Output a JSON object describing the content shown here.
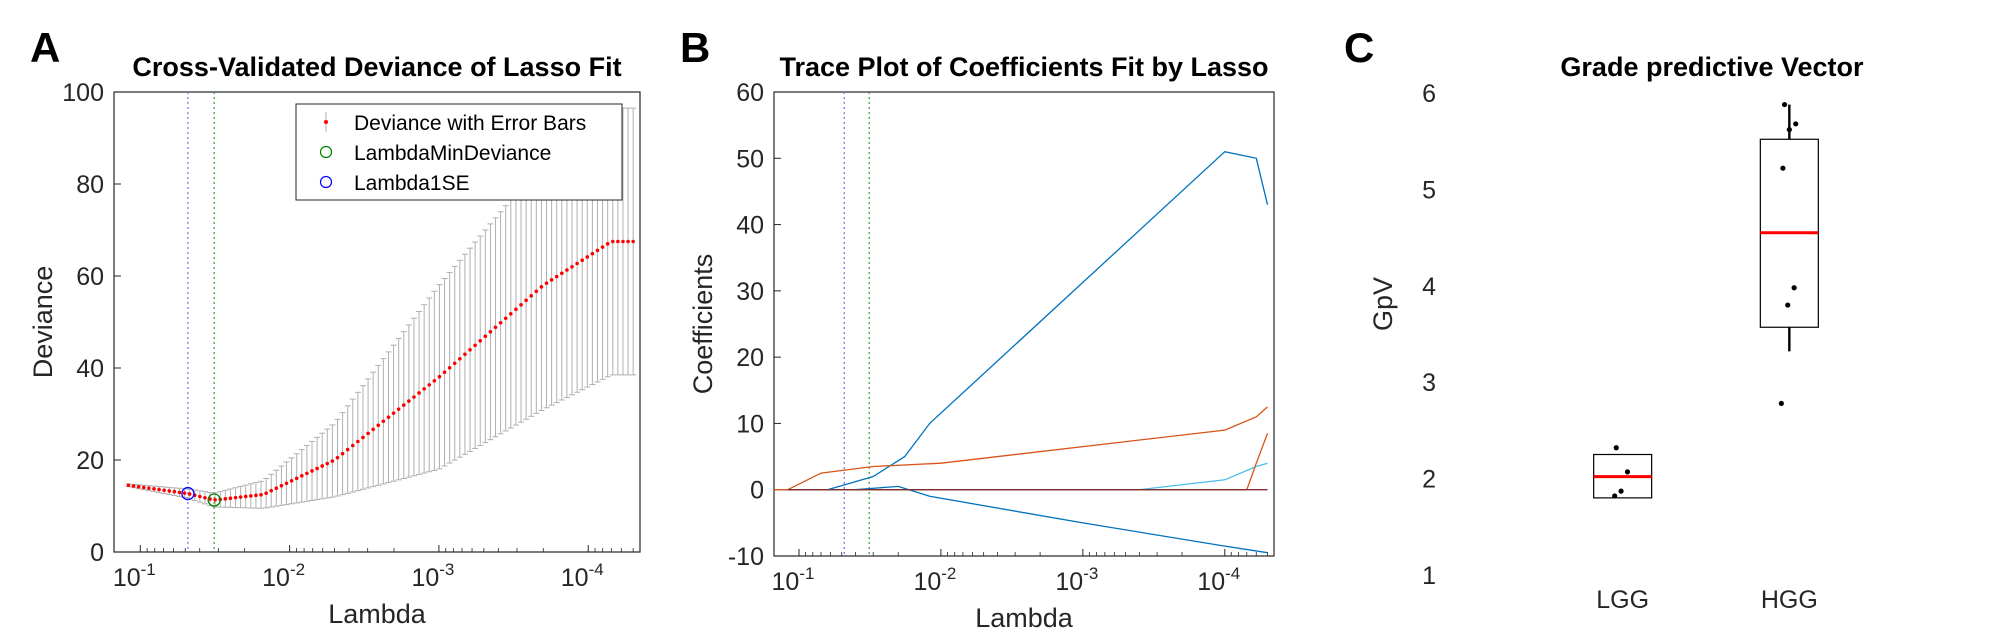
{
  "panels": {
    "A": {
      "letter": "A"
    },
    "B": {
      "letter": "B"
    },
    "C": {
      "letter": "C"
    }
  },
  "chart_data": [
    {
      "id": "A",
      "type": "scatter",
      "title": "Cross-Validated Deviance of Lasso Fit",
      "xlabel": "Lambda",
      "ylabel": "Deviance",
      "xscale": "log",
      "xaxis_reversed": true,
      "xlim": [
        0.15,
        4.5e-05
      ],
      "ylim": [
        0,
        100
      ],
      "yticks": [
        0,
        20,
        40,
        60,
        80,
        100
      ],
      "xticks": [
        {
          "base": "10",
          "exp": "-1",
          "value": 0.1
        },
        {
          "base": "10",
          "exp": "-2",
          "value": 0.01
        },
        {
          "base": "10",
          "exp": "-3",
          "value": 0.001
        },
        {
          "base": "10",
          "exp": "-4",
          "value": 0.0001
        }
      ],
      "grid": false,
      "legend_position": "top-right",
      "legend": [
        {
          "label": "Deviance with Error Bars",
          "marker": "errorbar-dot",
          "color": "#ff0000"
        },
        {
          "label": "LambdaMinDeviance",
          "marker": "circle",
          "color": "#008000"
        },
        {
          "label": "Lambda1SE",
          "marker": "circle",
          "color": "#0000ff"
        }
      ],
      "lambda_min_deviance": {
        "x": 0.032,
        "y": 11.3,
        "line_color": "#2ca02c"
      },
      "lambda_1se": {
        "x": 0.048,
        "y": 12.7,
        "line_color": "#7b68ee"
      },
      "deviance_curve": [
        {
          "x": 0.12,
          "y": 14.5
        },
        {
          "x": 0.048,
          "y": 12.7
        },
        {
          "x": 0.032,
          "y": 11.3
        },
        {
          "x": 0.015,
          "y": 12.5
        },
        {
          "x": 0.005,
          "y": 20.0
        },
        {
          "x": 0.001,
          "y": 38.0
        },
        {
          "x": 0.0002,
          "y": 58.0
        },
        {
          "x": 7e-05,
          "y": 67.5
        },
        {
          "x": 5e-05,
          "y": 67.5
        }
      ],
      "deviance_stderr": [
        {
          "x": 0.12,
          "se": 0.3
        },
        {
          "x": 0.048,
          "se": 1.0
        },
        {
          "x": 0.032,
          "se": 1.5
        },
        {
          "x": 0.015,
          "se": 3.0
        },
        {
          "x": 0.005,
          "se": 8.0
        },
        {
          "x": 0.001,
          "se": 20.0
        },
        {
          "x": 0.0002,
          "se": 27.0
        },
        {
          "x": 7e-05,
          "se": 29.0
        },
        {
          "x": 5e-05,
          "se": 29.0
        }
      ],
      "deviance_color": "#ff0000",
      "errorbar_color": "#b0b0b0"
    },
    {
      "id": "B",
      "type": "line",
      "title": "Trace Plot of Coefficients Fit by Lasso",
      "xlabel": "Lambda",
      "ylabel": "Coefficients",
      "xscale": "log",
      "xaxis_reversed": true,
      "xlim": [
        0.15,
        4.5e-05
      ],
      "ylim": [
        -10,
        60
      ],
      "yticks": [
        -10,
        0,
        10,
        20,
        30,
        40,
        50,
        60
      ],
      "xticks": [
        {
          "base": "10",
          "exp": "-1",
          "value": 0.1
        },
        {
          "base": "10",
          "exp": "-2",
          "value": 0.01
        },
        {
          "base": "10",
          "exp": "-3",
          "value": 0.001
        },
        {
          "base": "10",
          "exp": "-4",
          "value": 0.0001
        }
      ],
      "grid": false,
      "vlines": [
        {
          "x": 0.048,
          "color": "#7b68ee"
        },
        {
          "x": 0.032,
          "color": "#2ca02c"
        }
      ],
      "series": [
        {
          "color": "#0072bd",
          "points": [
            {
              "x": 0.063,
              "y": 0
            },
            {
              "x": 0.03,
              "y": 2
            },
            {
              "x": 0.018,
              "y": 5
            },
            {
              "x": 0.012,
              "y": 10
            },
            {
              "x": 0.0001,
              "y": 51
            },
            {
              "x": 6e-05,
              "y": 50
            },
            {
              "x": 5e-05,
              "y": 43
            }
          ]
        },
        {
          "color": "#d95319",
          "points": [
            {
              "x": 0.12,
              "y": 0
            },
            {
              "x": 0.07,
              "y": 2.5
            },
            {
              "x": 0.03,
              "y": 3.5
            },
            {
              "x": 0.01,
              "y": 4
            },
            {
              "x": 0.0001,
              "y": 9
            },
            {
              "x": 6e-05,
              "y": 11
            },
            {
              "x": 5e-05,
              "y": 12.5
            }
          ]
        },
        {
          "color": "#0072bd",
          "points": [
            {
              "x": 0.04,
              "y": 0
            },
            {
              "x": 0.02,
              "y": 0.5
            },
            {
              "x": 0.012,
              "y": -1
            },
            {
              "x": 0.001,
              "y": -5
            },
            {
              "x": 0.0001,
              "y": -8.5
            },
            {
              "x": 5e-05,
              "y": -9.5
            }
          ]
        },
        {
          "color": "#4dbeee",
          "points": [
            {
              "x": 0.15,
              "y": 0
            },
            {
              "x": 0.0004,
              "y": 0
            },
            {
              "x": 0.0001,
              "y": 1.5
            },
            {
              "x": 6e-05,
              "y": 3.5
            },
            {
              "x": 5e-05,
              "y": 4
            }
          ]
        },
        {
          "color": "#d95319",
          "points": [
            {
              "x": 0.15,
              "y": 0
            },
            {
              "x": 7e-05,
              "y": 0
            },
            {
              "x": 6e-05,
              "y": 4
            },
            {
              "x": 5e-05,
              "y": 8.5
            }
          ]
        },
        {
          "color": "#7e2f2f",
          "points": [
            {
              "x": 0.12,
              "y": 0
            },
            {
              "x": 5e-05,
              "y": 0
            }
          ]
        }
      ]
    },
    {
      "id": "C",
      "type": "box",
      "title": "Grade predictive Vector",
      "xlabel": "",
      "ylabel": "GpV",
      "ylim": [
        1,
        6
      ],
      "yticks": [
        1,
        2,
        3,
        4,
        5,
        6
      ],
      "categories": [
        "LGG",
        "HGG"
      ],
      "grid": false,
      "median_color": "#ff0000",
      "boxes": [
        {
          "category": "LGG",
          "q1": 1.8,
          "median": 2.02,
          "q3": 2.25,
          "whisker_low": 1.8,
          "whisker_high": 2.25,
          "points": [
            1.82,
            1.87,
            2.07,
            2.32
          ]
        },
        {
          "category": "HGG",
          "q1": 3.57,
          "median": 4.55,
          "q3": 5.52,
          "whisker_low": 3.32,
          "whisker_high": 5.88,
          "points": [
            2.78,
            3.8,
            3.98,
            5.22,
            5.62,
            5.68,
            5.88
          ]
        }
      ]
    }
  ]
}
